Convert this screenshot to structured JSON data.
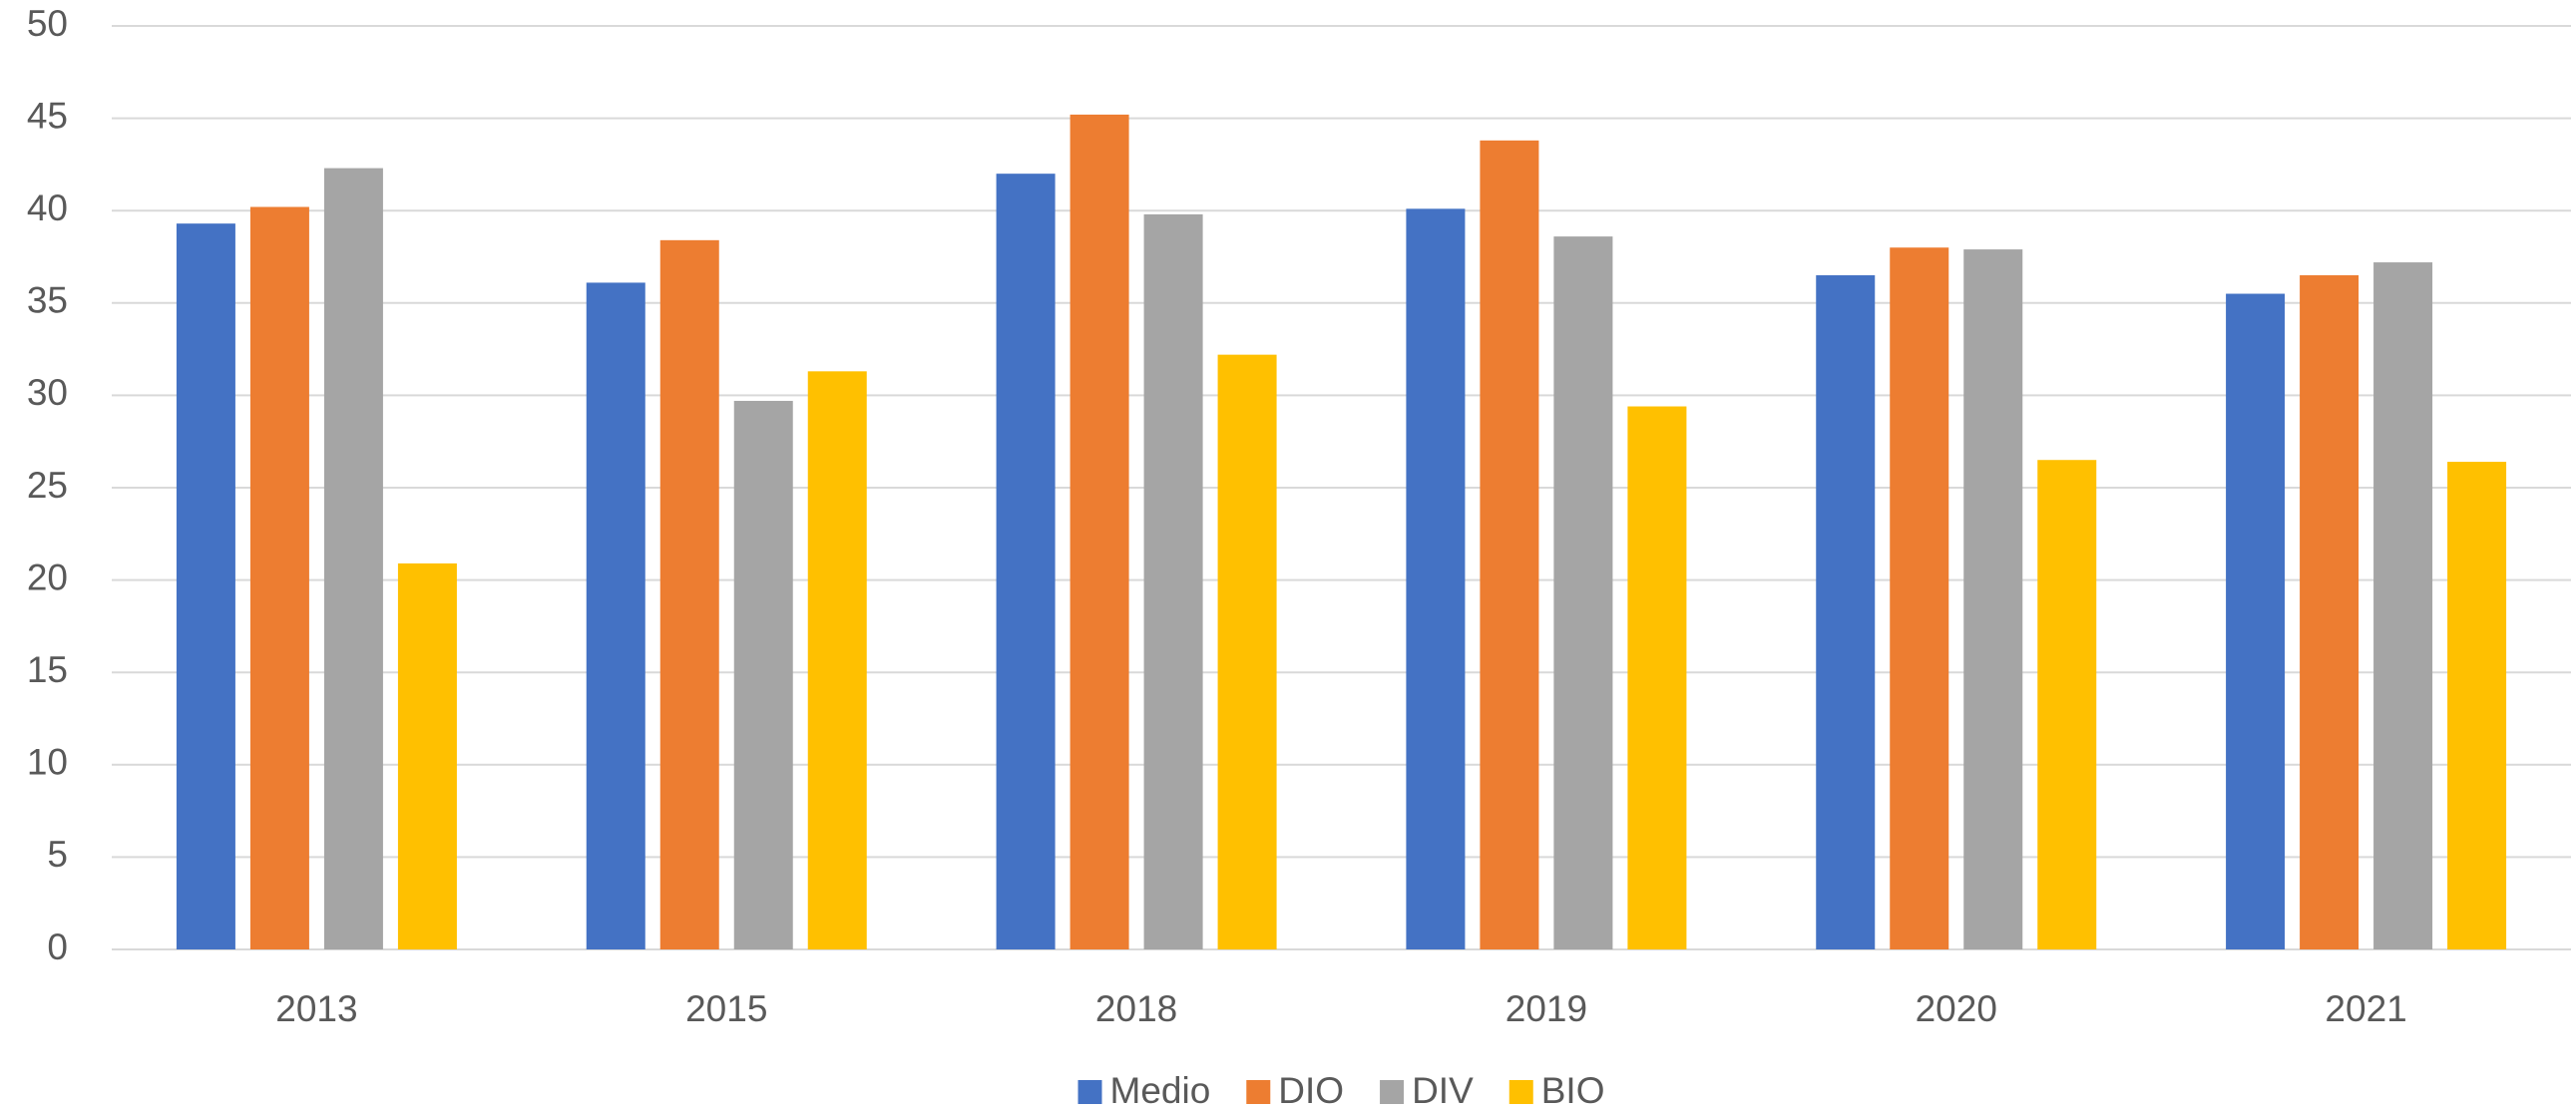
{
  "chart_data": {
    "type": "bar",
    "categories": [
      "2013",
      "2015",
      "2018",
      "2019",
      "2020",
      "2021"
    ],
    "series": [
      {
        "name": "Medio",
        "color": "#4472c4",
        "values": [
          39.3,
          36.1,
          42.0,
          40.1,
          36.5,
          35.5
        ]
      },
      {
        "name": "DIO",
        "color": "#ed7d31",
        "values": [
          40.2,
          38.4,
          45.2,
          43.8,
          38.0,
          36.5
        ]
      },
      {
        "name": "DIV",
        "color": "#a5a5a5",
        "values": [
          42.3,
          29.7,
          39.8,
          38.6,
          37.9,
          37.2
        ]
      },
      {
        "name": "BIO",
        "color": "#ffc000",
        "values": [
          20.9,
          31.3,
          32.2,
          29.4,
          26.5,
          26.4
        ]
      }
    ],
    "ylim": [
      0,
      50
    ],
    "yticks": [
      0,
      5,
      10,
      15,
      20,
      25,
      30,
      35,
      40,
      45,
      50
    ],
    "grid": true,
    "legend": "bottom"
  }
}
